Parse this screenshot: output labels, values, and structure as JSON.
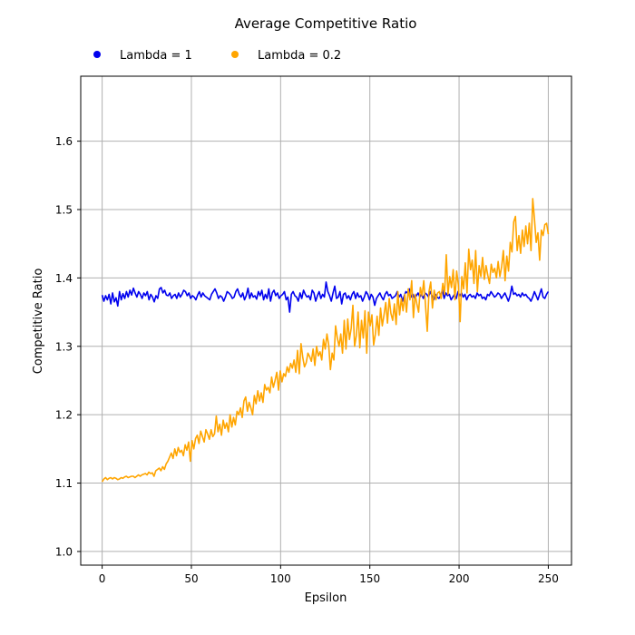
{
  "chart_data": {
    "type": "line",
    "title": "Average Competitive Ratio",
    "xlabel": "Epsilon",
    "ylabel": "Competitive Ratio",
    "xlim": [
      -12,
      263
    ],
    "ylim": [
      0.98,
      1.695
    ],
    "xticks": [
      0,
      50,
      100,
      150,
      200,
      250
    ],
    "xtick_labels": [
      "0",
      "50",
      "100",
      "150",
      "200",
      "250"
    ],
    "yticks": [
      1.0,
      1.1,
      1.2,
      1.3,
      1.4,
      1.5,
      1.6
    ],
    "ytick_labels": [
      "1.0",
      "1.1",
      "1.2",
      "1.3",
      "1.4",
      "1.5",
      "1.6"
    ],
    "grid": true,
    "legend_position": "top",
    "series": [
      {
        "name": "Lambda = 1",
        "color": "#0000ee",
        "x_range": [
          0,
          250
        ],
        "values": [
          1.375,
          1.366,
          1.374,
          1.368,
          1.376,
          1.362,
          1.378,
          1.365,
          1.371,
          1.359,
          1.38,
          1.368,
          1.377,
          1.37,
          1.38,
          1.372,
          1.382,
          1.375,
          1.385,
          1.378,
          1.372,
          1.38,
          1.376,
          1.37,
          1.378,
          1.374,
          1.38,
          1.368,
          1.376,
          1.372,
          1.365,
          1.374,
          1.37,
          1.384,
          1.386,
          1.378,
          1.382,
          1.375,
          1.374,
          1.378,
          1.37,
          1.374,
          1.376,
          1.37,
          1.378,
          1.372,
          1.376,
          1.382,
          1.38,
          1.374,
          1.378,
          1.37,
          1.374,
          1.372,
          1.368,
          1.375,
          1.38,
          1.372,
          1.378,
          1.374,
          1.372,
          1.37,
          1.368,
          1.376,
          1.38,
          1.384,
          1.378,
          1.37,
          1.374,
          1.372,
          1.366,
          1.372,
          1.38,
          1.378,
          1.375,
          1.37,
          1.372,
          1.38,
          1.384,
          1.376,
          1.372,
          1.378,
          1.368,
          1.374,
          1.385,
          1.37,
          1.378,
          1.372,
          1.374,
          1.369,
          1.38,
          1.374,
          1.382,
          1.368,
          1.376,
          1.37,
          1.384,
          1.366,
          1.378,
          1.382,
          1.374,
          1.378,
          1.37,
          1.374,
          1.376,
          1.38,
          1.368,
          1.372,
          1.35,
          1.376,
          1.38,
          1.374,
          1.372,
          1.366,
          1.378,
          1.37,
          1.382,
          1.376,
          1.372,
          1.374,
          1.368,
          1.382,
          1.378,
          1.366,
          1.374,
          1.38,
          1.37,
          1.376,
          1.372,
          1.394,
          1.38,
          1.374,
          1.366,
          1.378,
          1.388,
          1.37,
          1.372,
          1.38,
          1.362,
          1.376,
          1.378,
          1.37,
          1.374,
          1.368,
          1.376,
          1.38,
          1.37,
          1.378,
          1.372,
          1.374,
          1.366,
          1.372,
          1.38,
          1.376,
          1.368,
          1.376,
          1.372,
          1.36,
          1.37,
          1.374,
          1.378,
          1.372,
          1.368,
          1.376,
          1.38,
          1.374,
          1.376,
          1.37,
          1.372,
          1.374,
          1.38,
          1.372,
          1.376,
          1.366,
          1.374,
          1.38,
          1.378,
          1.384,
          1.372,
          1.376,
          1.37,
          1.374,
          1.378,
          1.372,
          1.376,
          1.37,
          1.378,
          1.376,
          1.372,
          1.38,
          1.374,
          1.368,
          1.376,
          1.372,
          1.37,
          1.374,
          1.382,
          1.37,
          1.378,
          1.374,
          1.376,
          1.368,
          1.372,
          1.376,
          1.37,
          1.38,
          1.374,
          1.378,
          1.372,
          1.376,
          1.368,
          1.374,
          1.376,
          1.372,
          1.374,
          1.37,
          1.378,
          1.374,
          1.376,
          1.37,
          1.372,
          1.368,
          1.376,
          1.374,
          1.38,
          1.376,
          1.372,
          1.374,
          1.378,
          1.376,
          1.37,
          1.374,
          1.378,
          1.372,
          1.366,
          1.374,
          1.388,
          1.376,
          1.378,
          1.374,
          1.376,
          1.372,
          1.378,
          1.374,
          1.376,
          1.372,
          1.37,
          1.366,
          1.372,
          1.38,
          1.374,
          1.368,
          1.376,
          1.384,
          1.372,
          1.37,
          1.376,
          1.38
        ]
      },
      {
        "name": "Lambda = 0.2",
        "color": "#ffa500",
        "x_range": [
          0,
          250
        ],
        "values": [
          1.102,
          1.106,
          1.108,
          1.105,
          1.107,
          1.108,
          1.106,
          1.108,
          1.107,
          1.105,
          1.106,
          1.108,
          1.107,
          1.109,
          1.11,
          1.108,
          1.109,
          1.11,
          1.11,
          1.108,
          1.11,
          1.112,
          1.11,
          1.112,
          1.113,
          1.114,
          1.112,
          1.116,
          1.114,
          1.115,
          1.11,
          1.118,
          1.12,
          1.122,
          1.118,
          1.124,
          1.12,
          1.128,
          1.132,
          1.138,
          1.144,
          1.136,
          1.15,
          1.14,
          1.152,
          1.145,
          1.148,
          1.14,
          1.156,
          1.148,
          1.16,
          1.132,
          1.162,
          1.15,
          1.165,
          1.17,
          1.158,
          1.176,
          1.168,
          1.16,
          1.178,
          1.172,
          1.164,
          1.178,
          1.168,
          1.172,
          1.198,
          1.175,
          1.186,
          1.17,
          1.192,
          1.18,
          1.188,
          1.175,
          1.2,
          1.182,
          1.196,
          1.185,
          1.205,
          1.2,
          1.21,
          1.196,
          1.22,
          1.226,
          1.205,
          1.218,
          1.21,
          1.2,
          1.228,
          1.216,
          1.235,
          1.22,
          1.232,
          1.218,
          1.244,
          1.236,
          1.24,
          1.232,
          1.255,
          1.24,
          1.25,
          1.262,
          1.236,
          1.264,
          1.248,
          1.26,
          1.256,
          1.27,
          1.262,
          1.275,
          1.268,
          1.28,
          1.262,
          1.294,
          1.26,
          1.304,
          1.284,
          1.27,
          1.276,
          1.29,
          1.285,
          1.278,
          1.296,
          1.272,
          1.3,
          1.286,
          1.292,
          1.28,
          1.31,
          1.296,
          1.318,
          1.302,
          1.266,
          1.29,
          1.28,
          1.33,
          1.312,
          1.3,
          1.318,
          1.29,
          1.338,
          1.296,
          1.34,
          1.31,
          1.326,
          1.36,
          1.3,
          1.316,
          1.35,
          1.298,
          1.338,
          1.312,
          1.352,
          1.29,
          1.35,
          1.33,
          1.346,
          1.302,
          1.318,
          1.344,
          1.316,
          1.356,
          1.33,
          1.346,
          1.364,
          1.334,
          1.37,
          1.348,
          1.338,
          1.362,
          1.332,
          1.38,
          1.346,
          1.37,
          1.352,
          1.376,
          1.35,
          1.384,
          1.368,
          1.396,
          1.342,
          1.376,
          1.362,
          1.35,
          1.386,
          1.374,
          1.396,
          1.36,
          1.322,
          1.38,
          1.394,
          1.356,
          1.382,
          1.368,
          1.378,
          1.38,
          1.37,
          1.392,
          1.376,
          1.434,
          1.376,
          1.402,
          1.386,
          1.412,
          1.368,
          1.41,
          1.39,
          1.336,
          1.402,
          1.384,
          1.422,
          1.378,
          1.442,
          1.412,
          1.426,
          1.392,
          1.44,
          1.38,
          1.418,
          1.402,
          1.43,
          1.398,
          1.418,
          1.404,
          1.392,
          1.42,
          1.408,
          1.414,
          1.4,
          1.424,
          1.402,
          1.416,
          1.44,
          1.396,
          1.432,
          1.41,
          1.452,
          1.438,
          1.482,
          1.49,
          1.44,
          1.462,
          1.436,
          1.47,
          1.446,
          1.476,
          1.45,
          1.48,
          1.44,
          1.516,
          1.486,
          1.452,
          1.466,
          1.426,
          1.47,
          1.462,
          1.478,
          1.48,
          1.464
        ]
      }
    ]
  }
}
